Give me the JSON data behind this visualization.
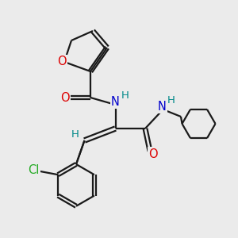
{
  "background_color": "#ebebeb",
  "bond_color": "#1a1a1a",
  "atom_colors": {
    "O": "#dd0000",
    "N": "#0000cc",
    "H": "#008888",
    "Cl": "#22aa22",
    "C": "#1a1a1a"
  },
  "figsize": [
    3.0,
    3.0
  ],
  "dpi": 100,
  "lw": 1.6,
  "fs": 9.5
}
